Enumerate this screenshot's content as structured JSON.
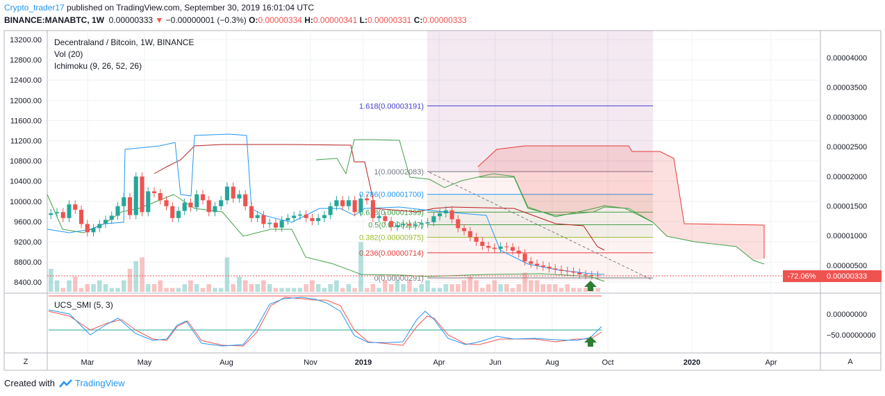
{
  "header": {
    "author": "Crypto_trader17",
    "published": " published on TradingView.com, September 30, 2019 16:01:04 UTC",
    "symbol": "BINANCE:MANABTC, 1W",
    "last": "0.00000333",
    "change_arrow": "▼",
    "change": "−0.00000001 (−0.3%)",
    "o_label": "O:",
    "o": "0.00000334",
    "h_label": "H:",
    "h": "0.00000341",
    "l_label": "L:",
    "l": "0.00000331",
    "c_label": "C:",
    "c": "0.00000333"
  },
  "legend": {
    "title": "Decentraland / Bitcoin, 1W, BINANCE",
    "vol": "Vol (20)",
    "ichimoku": "Ichimoku (9, 26, 52, 26)",
    "smi": "UCS_SMI (5, 3)"
  },
  "footer": {
    "created_with": "Created with",
    "brand": "TradingView"
  },
  "buttons": {
    "left": "Z",
    "right": "A"
  },
  "price_badge": {
    "pct": "-72.06%",
    "price": "0.00000333"
  },
  "colors": {
    "up": "#26a69a",
    "down": "#ef5350",
    "tenkan": "#2196f3",
    "kijun": "#b71c1c",
    "span_a": "#43a047",
    "span_b": "#e53935",
    "fib_accent": "#3f3fcf"
  },
  "chart_data": {
    "type": "candlestick",
    "left_axis_ticks": [
      "13200.00",
      "12800.00",
      "12400.00",
      "12000.00",
      "11600.00",
      "11200.00",
      "10800.00",
      "10400.00",
      "10000.00",
      "9600.00",
      "9200.00",
      "8800.00",
      "8400.00"
    ],
    "right_axis_ticks": [
      "0.00004000",
      "0.00003500",
      "0.00003000",
      "0.00002500",
      "0.00002000",
      "0.00001500",
      "0.00001000",
      "0.00000500"
    ],
    "x_ticks": [
      "Mar",
      "May",
      "Aug",
      "Nov",
      "2019",
      "Apr",
      "Jun",
      "Aug",
      "Oct",
      "2020",
      "Apr"
    ],
    "smi_ticks": [
      "0.00000000",
      "−50.00000000"
    ],
    "fib_levels": [
      {
        "label": "1.618(0.00003191)",
        "value": 3.191e-05
      },
      {
        "label": "1(0.00002083)",
        "value": 2.083e-05
      },
      {
        "label": "0.786(0.00001700)",
        "value": 1.7e-05
      },
      {
        "label": "0.618(0.00001399)",
        "value": 1.399e-05
      },
      {
        "label": "0.5(0.00001187)",
        "value": 1.187e-05
      },
      {
        "label": "0.382(0.00000975)",
        "value": 9.75e-06
      },
      {
        "label": "0.236(0.00000714)",
        "value": 7.14e-06
      },
      {
        "label": "0(0.00000291)",
        "value": 2.91e-06
      }
    ],
    "closes": [
      1.38e-05,
      1.4e-05,
      1.3e-05,
      1.53e-05,
      1.44e-05,
      1.2e-05,
      1.06e-05,
      1.13e-05,
      1.2e-05,
      1.27e-05,
      1.34e-05,
      1.5e-05,
      1.65e-05,
      1.35e-05,
      2e-05,
      1.4e-05,
      1.75e-05,
      1.72e-05,
      1.6e-05,
      1.5e-05,
      1.3e-05,
      1.42e-05,
      1.56e-05,
      1.48e-05,
      1.7e-05,
      1.6e-05,
      1.4e-05,
      1.5e-05,
      1.6e-05,
      1.83e-05,
      1.63e-05,
      1.7e-05,
      1.5e-05,
      1.3e-05,
      1.35e-05,
      1.2e-05,
      1.22e-05,
      1.14e-05,
      1.26e-05,
      1.3e-05,
      1.34e-05,
      1.36e-05,
      1.3e-05,
      1.25e-05,
      1.3e-05,
      1.35e-05,
      1.5e-05,
      1.6e-05,
      1.5e-05,
      1.6e-05,
      1.4e-05,
      1.63e-05,
      1.6e-05,
      1.3e-05,
      1.33e-05,
      1.25e-05,
      1.15e-05,
      1.18e-05,
      1.2e-05,
      1.17e-05,
      1.19e-05,
      1.21e-05,
      1.23e-05,
      1.33e-05,
      1.38e-05,
      1.43e-05,
      1.28e-05,
      1.13e-05,
      1.08e-05,
      9.8e-06,
      9e-06,
      8.3e-06,
      8e-06,
      7.8e-06,
      8.2e-06,
      8.1e-06,
      7.5e-06,
      7e-06,
      5.7e-06,
      5.3e-06,
      5e-06,
      4.8e-06,
      4.5e-06,
      4.3e-06,
      4.1e-06,
      4e-06,
      3.8e-06,
      3.5e-06,
      3.4e-06,
      3.34e-06,
      3.33e-06
    ],
    "volume": [
      6,
      3,
      1,
      3,
      4,
      1,
      2,
      2,
      3,
      2,
      1,
      1,
      3,
      6,
      8,
      9,
      2,
      2,
      3,
      1,
      1,
      1,
      2,
      3,
      2,
      1,
      2,
      1,
      1,
      9,
      2,
      4,
      3,
      2,
      2,
      3,
      2,
      1,
      1,
      1,
      1,
      1,
      2,
      3,
      2,
      1,
      2,
      3,
      1,
      2,
      1,
      13,
      1,
      2,
      1,
      3,
      2,
      3,
      2,
      3,
      1,
      2,
      3,
      1,
      1,
      2,
      2,
      2,
      3,
      4,
      3,
      1,
      2,
      3,
      2,
      2,
      1,
      2,
      5,
      3,
      3,
      2,
      2,
      2,
      1,
      2,
      1,
      1,
      1,
      1,
      1
    ],
    "current_price": 3.33e-06,
    "ylim_right": [
      2.7e-06,
      4.5e-06
    ]
  }
}
